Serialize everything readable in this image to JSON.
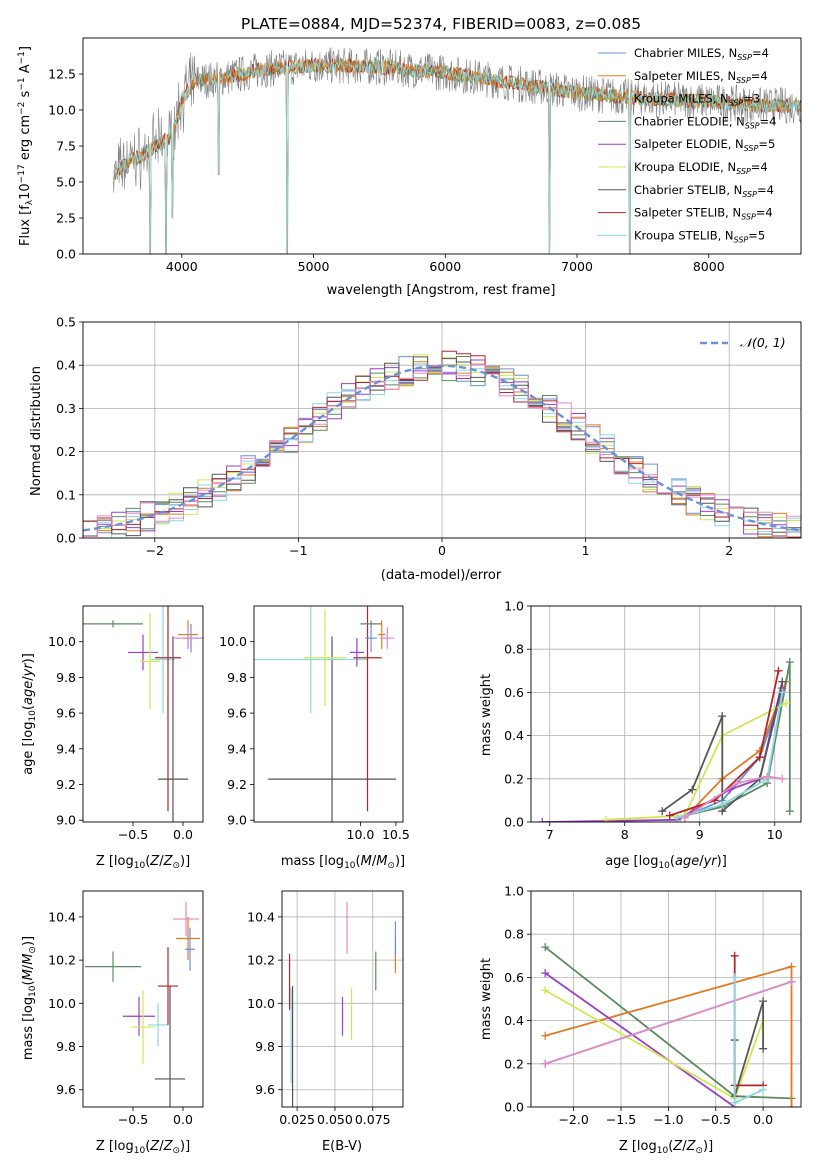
{
  "title": "PLATE=0884, MJD=52374, FIBERID=0083, z=0.085",
  "colors": {
    "Chabrier MILES": "#6a92d6",
    "Salpeter MILES": "#e07b22",
    "Kroupa MILES": "#b7a03d",
    "Chabrier ELODIE": "#5c8a61",
    "Salpeter ELODIE": "#9b3ec8",
    "Kroupa ELODIE": "#d2e654",
    "Chabrier STELIB": "#555555",
    "Salpeter STELIB": "#b3262a",
    "Kroupa STELIB": "#8ad8e0",
    "extra": "#e28ac3",
    "normal": "#6a92d6",
    "data": "#808080"
  },
  "chart_data": [
    {
      "type": "line",
      "xlabel": "wavelength [Angstrom, rest frame]",
      "ylabel": "Flux [fλ10⁻¹⁷ erg cm⁻² s⁻¹ A⁻¹]",
      "xlim": [
        3250,
        8700
      ],
      "ylim": [
        0,
        15
      ],
      "xticks": [
        "4000",
        "5000",
        "6000",
        "7000",
        "8000"
      ],
      "yticks": [
        "0.0",
        "2.5",
        "5.0",
        "7.5",
        "10.0",
        "12.5"
      ],
      "legend": "upper right",
      "legend_entries": [
        {
          "base": "Chabrier MILES, N",
          "sub": "SSP",
          "val": "=4"
        },
        {
          "base": "Salpeter MILES, N",
          "sub": "SSP",
          "val": "=4"
        },
        {
          "base": "Kroupa MILES, N",
          "sub": "SSP",
          "val": "=3"
        },
        {
          "base": "Chabrier ELODIE, N",
          "sub": "SSP",
          "val": "=4"
        },
        {
          "base": "Salpeter ELODIE, N",
          "sub": "SSP",
          "val": "=5"
        },
        {
          "base": "Kroupa ELODIE, N",
          "sub": "SSP",
          "val": "=4"
        },
        {
          "base": "Chabrier STELIB, N",
          "sub": "SSP",
          "val": "=4"
        },
        {
          "base": "Salpeter STELIB, N",
          "sub": "SSP",
          "val": "=4"
        },
        {
          "base": "Kroupa STELIB, N",
          "sub": "SSP",
          "val": "=5"
        }
      ],
      "continuum": [
        [
          3480,
          5.5
        ],
        [
          3600,
          6.5
        ],
        [
          3700,
          6.8
        ],
        [
          3800,
          7.5
        ],
        [
          3900,
          8.0
        ],
        [
          3950,
          9.0
        ],
        [
          4000,
          10.8
        ],
        [
          4100,
          12.0
        ],
        [
          4300,
          12.2
        ],
        [
          4600,
          12.8
        ],
        [
          5000,
          13.1
        ],
        [
          5500,
          13.0
        ],
        [
          6000,
          12.6
        ],
        [
          6500,
          11.9
        ],
        [
          7000,
          11.2
        ],
        [
          7500,
          10.8
        ],
        [
          8000,
          10.6
        ],
        [
          8400,
          10.3
        ],
        [
          8700,
          10.3
        ]
      ],
      "dips": [
        [
          3760,
          0.0
        ],
        [
          3880,
          0.0
        ],
        [
          3930,
          2.5
        ],
        [
          4280,
          5.5
        ],
        [
          4800,
          0.0
        ],
        [
          6790,
          0.0
        ],
        [
          7400,
          0.0
        ]
      ]
    },
    {
      "type": "bar",
      "xlabel": "(data-model)/error",
      "ylabel": "Normed distribution",
      "xlim": [
        -2.5,
        2.5
      ],
      "ylim": [
        0,
        0.5
      ],
      "xticks": [
        "−2",
        "−1",
        "0",
        "1",
        "2"
      ],
      "yticks": [
        "0.0",
        "0.1",
        "0.2",
        "0.3",
        "0.4",
        "0.5"
      ],
      "legend_label": "𝒩(0, 1)",
      "bin_width": 0.1,
      "gaussian_mean": 0,
      "gaussian_sigma": 1
    },
    {
      "type": "scatter",
      "xlabel": "Z [log₁₀(Z/Z⊙)]",
      "ylabel": "age  [log₁₀(age/yr)]",
      "xlim": [
        -1.0,
        0.2
      ],
      "ylim": [
        8.99,
        10.2
      ],
      "xticks": [
        "−0.5",
        "0.0"
      ],
      "yticks": [
        "9.0",
        "9.2",
        "9.4",
        "9.6",
        "9.8",
        "10.0"
      ],
      "points": [
        {
          "c": "Chabrier ELODIE",
          "x": -0.7,
          "y": 10.1,
          "xerr": 0.3,
          "yerr": 0.02
        },
        {
          "c": "Salpeter ELODIE",
          "x": -0.4,
          "y": 9.94,
          "xerr": 0.15,
          "yerr": 0.1
        },
        {
          "c": "Kroupa ELODIE",
          "x": -0.33,
          "y": 9.89,
          "xerr": 0.1,
          "yerr": 0.27
        },
        {
          "c": "Kroupa STELIB",
          "x": -0.2,
          "y": 9.9,
          "xerr": 0.12,
          "yerr": 0.3
        },
        {
          "c": "Salpeter STELIB",
          "x": -0.15,
          "y": 9.91,
          "xerr": 0.13,
          "yerr": 0.86
        },
        {
          "c": "Chabrier STELIB",
          "x": -0.1,
          "y": 9.23,
          "xerr": 0.15,
          "yerr": 0.8
        },
        {
          "c": "Salpeter MILES",
          "x": 0.05,
          "y": 10.04,
          "xerr": 0.1,
          "yerr": 0.08
        },
        {
          "c": "Chabrier MILES",
          "x": 0.08,
          "y": 10.02,
          "xerr": 0.08,
          "yerr": 0.08
        },
        {
          "c": "extra",
          "x": 0.05,
          "y": 10.02,
          "xerr": 0.15,
          "yerr": 0.06
        }
      ]
    },
    {
      "type": "scatter",
      "xlabel": "mass [log₁₀(M/M⊙)]",
      "ylabel": "",
      "xlim": [
        8.5,
        10.6
      ],
      "ylim": [
        8.99,
        10.2
      ],
      "xticks": [
        "10.0",
        "10.5"
      ],
      "yticks": [
        "9.0",
        "9.2",
        "9.4",
        "9.6",
        "9.8",
        "10.0"
      ],
      "points": [
        {
          "c": "Chabrier STELIB",
          "x": 9.6,
          "y": 9.23,
          "xerr": 0.9,
          "yerr": 0.8
        },
        {
          "c": "Kroupa STELIB",
          "x": 9.3,
          "y": 9.9,
          "xerr": 0.8,
          "yerr": 0.3
        },
        {
          "c": "Kroupa ELODIE",
          "x": 9.5,
          "y": 9.91,
          "xerr": 0.3,
          "yerr": 0.27
        },
        {
          "c": "Salpeter STELIB",
          "x": 10.1,
          "y": 9.91,
          "xerr": 0.2,
          "yerr": 0.86
        },
        {
          "c": "Salpeter ELODIE",
          "x": 9.95,
          "y": 9.94,
          "xerr": 0.1,
          "yerr": 0.08
        },
        {
          "c": "Chabrier ELODIE",
          "x": 10.15,
          "y": 10.1,
          "xerr": 0.15,
          "yerr": 0.02
        },
        {
          "c": "Salpeter MILES",
          "x": 10.3,
          "y": 10.04,
          "xerr": 0.05,
          "yerr": 0.08
        },
        {
          "c": "Chabrier MILES",
          "x": 10.15,
          "y": 10.02,
          "xerr": 0.08,
          "yerr": 0.08
        },
        {
          "c": "extra",
          "x": 10.38,
          "y": 10.02,
          "xerr": 0.1,
          "yerr": 0.06
        }
      ]
    },
    {
      "type": "line",
      "xlabel": "age  [log₁₀(age/yr)]",
      "ylabel": "mass weight",
      "xlim": [
        6.75,
        10.35
      ],
      "ylim": [
        0,
        1
      ],
      "xticks": [
        "7",
        "8",
        "9",
        "10"
      ],
      "yticks": [
        "0.0",
        "0.2",
        "0.4",
        "0.6",
        "0.8",
        "1.0"
      ],
      "series": [
        {
          "c": "Chabrier MILES",
          "points": [
            [
              8.7,
              0.01
            ],
            [
              9.3,
              0.1
            ],
            [
              9.8,
              0.3
            ],
            [
              10.1,
              0.6
            ]
          ]
        },
        {
          "c": "Salpeter MILES",
          "points": [
            [
              8.8,
              0.02
            ],
            [
              9.3,
              0.2
            ],
            [
              9.8,
              0.33
            ],
            [
              10.15,
              0.65
            ]
          ]
        },
        {
          "c": "Chabrier ELODIE",
          "points": [
            [
              8.8,
              0.03
            ],
            [
              9.3,
              0.07
            ],
            [
              9.9,
              0.18
            ],
            [
              10.2,
              0.74
            ],
            [
              10.2,
              0.05
            ]
          ]
        },
        {
          "c": "Salpeter ELODIE",
          "points": [
            [
              6.9,
              0.0
            ],
            [
              8.7,
              0.01
            ],
            [
              9.4,
              0.15
            ],
            [
              9.8,
              0.2
            ],
            [
              10.1,
              0.62
            ]
          ]
        },
        {
          "c": "Kroupa ELODIE",
          "points": [
            [
              7.75,
              0.01
            ],
            [
              8.8,
              0.03
            ],
            [
              9.3,
              0.4
            ],
            [
              10.15,
              0.55
            ]
          ]
        },
        {
          "c": "Chabrier STELIB",
          "points": [
            [
              8.5,
              0.05
            ],
            [
              8.9,
              0.15
            ],
            [
              9.3,
              0.49
            ],
            [
              9.3,
              0.05
            ],
            [
              9.8,
              0.2
            ],
            [
              10.1,
              0.65
            ]
          ]
        },
        {
          "c": "Salpeter STELIB",
          "points": [
            [
              8.6,
              0.03
            ],
            [
              9.2,
              0.1
            ],
            [
              9.8,
              0.3
            ],
            [
              10.05,
              0.7
            ]
          ]
        },
        {
          "c": "Kroupa STELIB",
          "points": [
            [
              8.7,
              0.02
            ],
            [
              9.3,
              0.08
            ],
            [
              9.9,
              0.2
            ],
            [
              10.1,
              0.6
            ]
          ]
        },
        {
          "c": "extra",
          "points": [
            [
              8.8,
              0.02
            ],
            [
              9.5,
              0.18
            ],
            [
              9.9,
              0.21
            ],
            [
              10.1,
              0.2
            ]
          ]
        }
      ]
    },
    {
      "type": "scatter",
      "xlabel": "Z [log₁₀(Z/Z⊙)]",
      "ylabel": "mass [log₁₀(M/M⊙)]",
      "xlim": [
        -1.0,
        0.2
      ],
      "ylim": [
        9.52,
        10.52
      ],
      "xticks": [
        "−0.5",
        "0.0"
      ],
      "yticks": [
        "9.6",
        "9.8",
        "10.0",
        "10.2",
        "10.4"
      ],
      "points": [
        {
          "c": "Chabrier ELODIE",
          "x": -0.7,
          "y": 10.17,
          "xerr": 0.28,
          "yerr": 0.07
        },
        {
          "c": "Salpeter ELODIE",
          "x": -0.44,
          "y": 9.94,
          "xerr": 0.16,
          "yerr": 0.09
        },
        {
          "c": "Kroupa ELODIE",
          "x": -0.4,
          "y": 9.89,
          "xerr": 0.12,
          "yerr": 0.17
        },
        {
          "c": "Kroupa STELIB",
          "x": -0.25,
          "y": 9.9,
          "xerr": 0.1,
          "yerr": 0.1
        },
        {
          "c": "Salpeter STELIB",
          "x": -0.15,
          "y": 10.08,
          "xerr": 0.1,
          "yerr": 0.18
        },
        {
          "c": "Chabrier STELIB",
          "x": -0.13,
          "y": 9.65,
          "xerr": 0.15,
          "yerr": 0.43
        },
        {
          "c": "Salpeter MILES",
          "x": 0.05,
          "y": 10.3,
          "xerr": 0.12,
          "yerr": 0.1
        },
        {
          "c": "Chabrier MILES",
          "x": 0.07,
          "y": 10.25,
          "xerr": 0.05,
          "yerr": 0.1
        },
        {
          "c": "extra",
          "x": 0.03,
          "y": 10.39,
          "xerr": 0.13,
          "yerr": 0.08
        }
      ]
    },
    {
      "type": "scatter",
      "xlabel": "E(B-V)",
      "ylabel": "",
      "xlim": [
        0.015,
        0.095
      ],
      "ylim": [
        9.52,
        10.52
      ],
      "xticks": [
        "0.025",
        "0.050",
        "0.075"
      ],
      "yticks": [
        "9.6",
        "9.8",
        "10.0",
        "10.2",
        "10.4"
      ],
      "points": [
        {
          "c": "Salpeter STELIB",
          "x": 0.02,
          "y": 10.1,
          "xerr": 0,
          "yerr": 0.13
        },
        {
          "c": "Kroupa STELIB",
          "x": 0.021,
          "y": 9.85,
          "xerr": 0,
          "yerr": 0.22
        },
        {
          "c": "Chabrier STELIB",
          "x": 0.022,
          "y": 9.7,
          "xerr": 0,
          "yerr": 0.38
        },
        {
          "c": "extra",
          "x": 0.058,
          "y": 10.35,
          "xerr": 0,
          "yerr": 0.12
        },
        {
          "c": "Salpeter ELODIE",
          "x": 0.055,
          "y": 9.94,
          "xerr": 0,
          "yerr": 0.09
        },
        {
          "c": "Kroupa ELODIE",
          "x": 0.061,
          "y": 9.95,
          "xerr": 0,
          "yerr": 0.12
        },
        {
          "c": "Chabrier ELODIE",
          "x": 0.077,
          "y": 10.15,
          "xerr": 0,
          "yerr": 0.09
        },
        {
          "c": "Salpeter MILES",
          "x": 0.09,
          "y": 10.22,
          "xerr": 0,
          "yerr": 0.08
        },
        {
          "c": "Chabrier MILES",
          "x": 0.09,
          "y": 10.3,
          "xerr": 0,
          "yerr": 0.08
        }
      ]
    },
    {
      "type": "line",
      "xlabel": "Z [log₁₀(Z/Z⊙)]",
      "ylabel": "mass weight",
      "xlim": [
        -2.45,
        0.4
      ],
      "ylim": [
        0,
        1
      ],
      "xticks": [
        "−2.0",
        "−1.5",
        "−1.0",
        "−0.5",
        "0.0"
      ],
      "yticks": [
        "0.0",
        "0.2",
        "0.4",
        "0.6",
        "0.8",
        "1.0"
      ],
      "series": [
        {
          "c": "Chabrier ELODIE",
          "points": [
            [
              -2.3,
              0.74
            ],
            [
              -0.3,
              0.05
            ],
            [
              0.3,
              0.04
            ]
          ]
        },
        {
          "c": "Salpeter MILES",
          "points": [
            [
              -2.3,
              0.33
            ],
            [
              0.3,
              0.65
            ],
            [
              0.3,
              0.0
            ]
          ]
        },
        {
          "c": "Salpeter ELODIE",
          "points": [
            [
              -2.3,
              0.62
            ],
            [
              -0.3,
              0.0
            ]
          ]
        },
        {
          "c": "Kroupa ELODIE",
          "points": [
            [
              -2.3,
              0.54
            ],
            [
              -0.3,
              0.04
            ],
            [
              0.0,
              0.4
            ]
          ]
        },
        {
          "c": "Chabrier MILES",
          "points": [
            [
              -2.3,
              0.2
            ],
            [
              0.3,
              0.58
            ]
          ]
        },
        {
          "c": "extra",
          "points": [
            [
              -2.3,
              0.2
            ],
            [
              0.3,
              0.58
            ]
          ]
        },
        {
          "c": "Chabrier STELIB",
          "points": [
            [
              -0.3,
              0.31
            ],
            [
              -0.3,
              0.05
            ],
            [
              0.0,
              0.49
            ],
            [
              0.0,
              0.27
            ]
          ]
        },
        {
          "c": "Salpeter STELIB",
          "points": [
            [
              -0.3,
              0.7
            ],
            [
              -0.3,
              0.1
            ],
            [
              0.0,
              0.1
            ]
          ]
        },
        {
          "c": "Kroupa STELIB",
          "points": [
            [
              -0.3,
              0.6
            ],
            [
              -0.3,
              0.02
            ],
            [
              0.0,
              0.08
            ]
          ]
        }
      ]
    }
  ]
}
